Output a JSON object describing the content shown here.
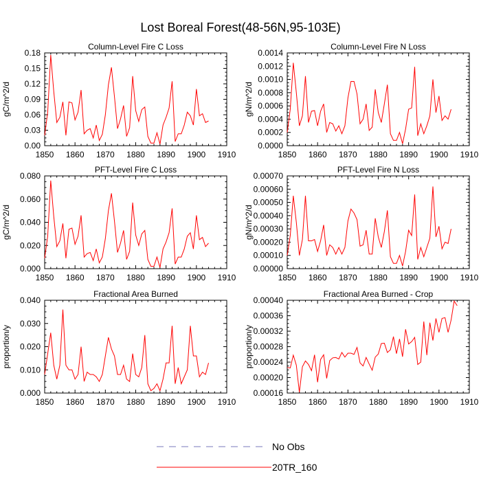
{
  "title": "Lost Boreal Forest(48-56N,95-103E)",
  "chart_data": [
    {
      "type": "line",
      "title": "Column-Level Fire C Loss",
      "ylabel": "gC/m^2/d",
      "xlabel": "",
      "xlim": [
        1850,
        1910
      ],
      "ylim": [
        0,
        0.18
      ],
      "xticks": [
        "1850",
        "1860",
        "1870",
        "1880",
        "1890",
        "1900",
        "1910"
      ],
      "yticks": [
        "0.00",
        "0.03",
        "0.06",
        "0.09",
        "0.12",
        "0.15",
        "0.18"
      ],
      "x_start": 1850,
      "series": [
        {
          "name": "20TR_160",
          "color": "#ff0000",
          "values": [
            0.02,
            0.065,
            0.176,
            0.105,
            0.045,
            0.055,
            0.085,
            0.02,
            0.085,
            0.083,
            0.05,
            0.065,
            0.108,
            0.023,
            0.03,
            0.033,
            0.015,
            0.04,
            0.01,
            0.022,
            0.06,
            0.118,
            0.152,
            0.095,
            0.033,
            0.052,
            0.078,
            0.018,
            0.035,
            0.135,
            0.068,
            0.047,
            0.07,
            0.075,
            0.018,
            0.005,
            0.005,
            0.025,
            0.003,
            0.04,
            0.055,
            0.073,
            0.125,
            0.008,
            0.023,
            0.023,
            0.04,
            0.065,
            0.058,
            0.04,
            0.11,
            0.058,
            0.062,
            0.045,
            0.048
          ]
        },
        {
          "name": "No Obs",
          "color": "#7777bb",
          "values": []
        }
      ]
    },
    {
      "type": "line",
      "title": "Column-Level Fire N Loss",
      "ylabel": "gN/m^2/d",
      "xlabel": "",
      "xlim": [
        1850,
        1910
      ],
      "ylim": [
        0,
        0.0014
      ],
      "xticks": [
        "1850",
        "1860",
        "1870",
        "1880",
        "1890",
        "1900",
        "1910"
      ],
      "yticks": [
        "0.0000",
        "0.0002",
        "0.0004",
        "0.0006",
        "0.0008",
        "0.0010",
        "0.0012",
        "0.0014"
      ],
      "x_start": 1850,
      "series": [
        {
          "name": "20TR_160",
          "color": "#ff0000",
          "values": [
            0.0002,
            0.00055,
            0.00125,
            0.0008,
            0.0003,
            0.00045,
            0.00105,
            0.00035,
            0.00052,
            0.00053,
            0.0003,
            0.00052,
            0.00063,
            0.0002,
            0.00035,
            0.00033,
            0.00022,
            0.0003,
            0.00018,
            0.0003,
            0.00072,
            0.00097,
            0.00097,
            0.00078,
            0.00033,
            0.0004,
            0.00063,
            0.00023,
            0.00028,
            0.00085,
            0.0005,
            0.00035,
            0.00063,
            0.00092,
            0.00018,
            8e-05,
            8e-05,
            0.0002,
            3e-05,
            0.00025,
            0.00055,
            0.00057,
            0.00119,
            0.00015,
            0.00033,
            0.00018,
            0.0003,
            0.00045,
            0.001,
            0.0005,
            0.00075,
            0.00038,
            0.00045,
            0.0004,
            0.00055
          ]
        },
        {
          "name": "No Obs",
          "color": "#7777bb",
          "values": []
        }
      ]
    },
    {
      "type": "line",
      "title": "PFT-Level Fire C Loss",
      "ylabel": "gC/m^2/d",
      "xlabel": "",
      "xlim": [
        1850,
        1910
      ],
      "ylim": [
        0,
        0.08
      ],
      "xticks": [
        "1850",
        "1860",
        "1870",
        "1880",
        "1890",
        "1900",
        "1910"
      ],
      "yticks": [
        "0.000",
        "0.020",
        "0.040",
        "0.060",
        "0.080"
      ],
      "x_start": 1850,
      "series": [
        {
          "name": "20TR_160",
          "color": "#ff0000",
          "values": [
            0.009,
            0.028,
            0.076,
            0.045,
            0.019,
            0.024,
            0.039,
            0.009,
            0.034,
            0.035,
            0.021,
            0.028,
            0.046,
            0.01,
            0.013,
            0.014,
            0.007,
            0.017,
            0.005,
            0.01,
            0.026,
            0.05,
            0.065,
            0.041,
            0.014,
            0.022,
            0.033,
            0.008,
            0.015,
            0.057,
            0.029,
            0.02,
            0.03,
            0.033,
            0.008,
            0.002,
            0.002,
            0.01,
            0.001,
            0.017,
            0.023,
            0.031,
            0.052,
            0.004,
            0.01,
            0.01,
            0.017,
            0.028,
            0.031,
            0.017,
            0.046,
            0.025,
            0.027,
            0.019,
            0.022
          ]
        },
        {
          "name": "No Obs",
          "color": "#7777bb",
          "values": []
        }
      ]
    },
    {
      "type": "line",
      "title": "PFT-Level Fire N Loss",
      "ylabel": "gN/m^2/d",
      "xlabel": "",
      "xlim": [
        1850,
        1910
      ],
      "ylim": [
        0,
        0.0007
      ],
      "xticks": [
        "1850",
        "1860",
        "1870",
        "1880",
        "1890",
        "1900",
        "1910"
      ],
      "yticks": [
        "0.00000",
        "0.00010",
        "0.00020",
        "0.00030",
        "0.00040",
        "0.00050",
        "0.00060",
        "0.00070"
      ],
      "x_start": 1850,
      "series": [
        {
          "name": "20TR_160",
          "color": "#ff0000",
          "values": [
            0.0001,
            0.00025,
            0.00055,
            0.00035,
            0.0001,
            0.00022,
            0.00055,
            0.00021,
            0.00021,
            0.00022,
            0.00013,
            0.00021,
            0.00033,
            0.0001,
            0.00018,
            0.00016,
            0.00011,
            0.00016,
            0.00011,
            0.00016,
            0.00036,
            0.00045,
            0.00042,
            0.00037,
            0.00017,
            0.00018,
            0.00029,
            0.00011,
            0.00011,
            0.00038,
            0.00024,
            0.00016,
            0.00028,
            0.00044,
            9e-05,
            4e-05,
            4e-05,
            0.0001,
            2e-05,
            0.00013,
            0.00029,
            0.00025,
            0.00056,
            7e-05,
            0.00016,
            9e-05,
            0.00016,
            0.00023,
            0.00062,
            0.00024,
            0.00032,
            0.00015,
            0.0002,
            0.00019,
            0.0003
          ]
        },
        {
          "name": "No Obs",
          "color": "#7777bb",
          "values": []
        }
      ]
    },
    {
      "type": "line",
      "title": "Fractional Area Burned",
      "ylabel": "proportion/y",
      "xlabel": "",
      "xlim": [
        1850,
        1910
      ],
      "ylim": [
        0,
        0.04
      ],
      "xticks": [
        "1850",
        "1860",
        "1870",
        "1880",
        "1890",
        "1900",
        "1910"
      ],
      "yticks": [
        "0.000",
        "0.010",
        "0.020",
        "0.030",
        "0.040"
      ],
      "x_start": 1850,
      "series": [
        {
          "name": "20TR_160",
          "color": "#ff0000",
          "values": [
            0.008,
            0.017,
            0.026,
            0.012,
            0.006,
            0.012,
            0.036,
            0.012,
            0.01,
            0.01,
            0.006,
            0.008,
            0.02,
            0.005,
            0.009,
            0.008,
            0.008,
            0.007,
            0.005,
            0.008,
            0.016,
            0.024,
            0.019,
            0.016,
            0.008,
            0.008,
            0.012,
            0.006,
            0.005,
            0.017,
            0.008,
            0.007,
            0.011,
            0.025,
            0.004,
            0.001,
            0.002,
            0.004,
            0.001,
            0.006,
            0.013,
            0.013,
            0.029,
            0.004,
            0.011,
            0.004,
            0.007,
            0.01,
            0.029,
            0.016,
            0.016,
            0.007,
            0.009,
            0.008,
            0.013
          ]
        },
        {
          "name": "No Obs",
          "color": "#7777bb",
          "values": []
        }
      ]
    },
    {
      "type": "line",
      "title": "Fractional Area Burned - Crop",
      "ylabel": "proportion/y",
      "xlabel": "",
      "xlim": [
        1850,
        1910
      ],
      "ylim": [
        0.00016,
        0.0004
      ],
      "xticks": [
        "1850",
        "1860",
        "1870",
        "1880",
        "1890",
        "1900",
        "1910"
      ],
      "yticks": [
        "0.00016",
        "0.00020",
        "0.00024",
        "0.00028",
        "0.00032",
        "0.00036",
        "0.00040"
      ],
      "x_start": 1850,
      "series": [
        {
          "name": "20TR_160",
          "color": "#ff0000",
          "values": [
            0.000226,
            0.000225,
            0.000258,
            0.000232,
            0.000162,
            0.000228,
            0.000243,
            0.000234,
            0.000218,
            0.000259,
            0.000188,
            0.000247,
            0.000259,
            0.000198,
            0.000244,
            0.000251,
            0.000252,
            0.000248,
            0.000265,
            0.000253,
            0.000263,
            0.000263,
            0.00026,
            0.000278,
            0.000238,
            0.00023,
            0.000252,
            0.000235,
            0.000219,
            0.000253,
            0.000261,
            0.000288,
            0.000289,
            0.000265,
            0.000272,
            0.000306,
            0.000262,
            0.0003,
            0.000254,
            0.000325,
            0.000287,
            0.000293,
            0.000304,
            0.000234,
            0.00024,
            0.000345,
            0.000258,
            0.000342,
            0.000296,
            0.000353,
            0.000317,
            0.000353,
            0.000355,
            0.000317,
            0.000349,
            0.000398,
            0.000386
          ]
        },
        {
          "name": "No Obs",
          "color": "#7777bb",
          "values": []
        }
      ]
    }
  ],
  "legend": {
    "entries": [
      {
        "label": "No Obs",
        "color": "#7777bb",
        "style": "dashed"
      },
      {
        "label": "20TR_160",
        "color": "#ff0000",
        "style": "solid"
      }
    ]
  }
}
